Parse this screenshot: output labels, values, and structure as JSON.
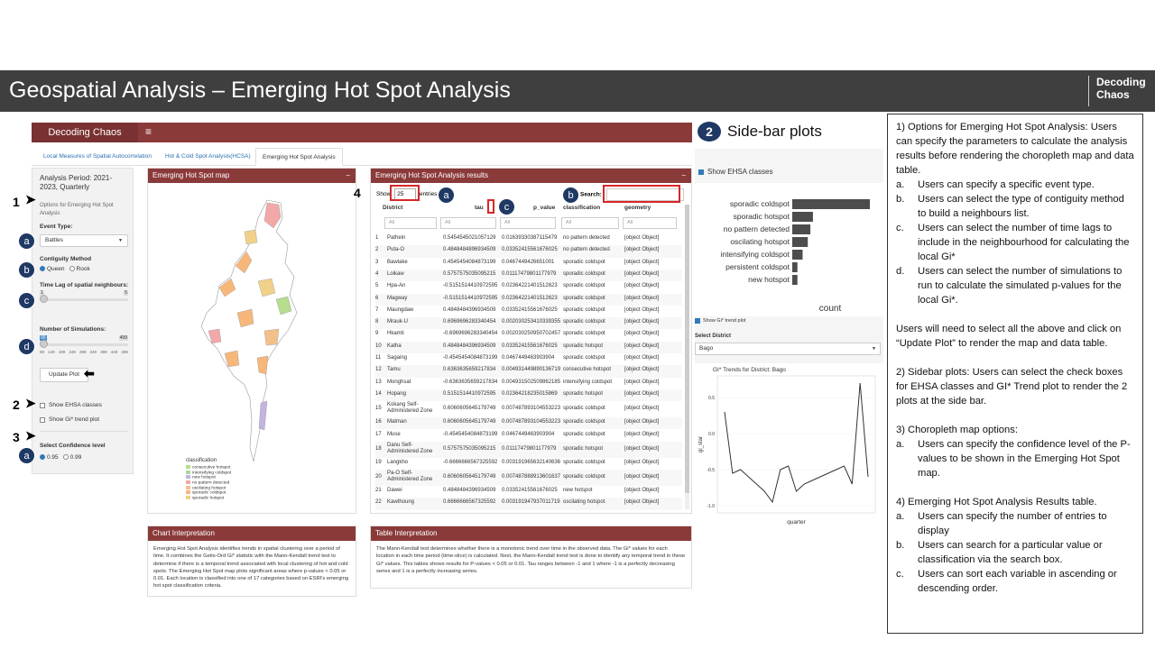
{
  "slide": {
    "title": "Geospatial Analysis – Emerging Hot Spot Analysis",
    "logo_line1": "Decoding",
    "logo_line2": "Chaos"
  },
  "app": {
    "brand": "Decoding Chaos",
    "menu_icon": "≡",
    "tabs": [
      "Local Measures of Spatial Autocorrelation",
      "Hot & Cold Spot Analysis(HCSA)",
      "Emerging Hot Spot Analysis"
    ],
    "sidebar": {
      "period": "Analysis Period: 2021-2023, Quarterly",
      "hint": "Options for Emerging Hot Spot Analysis",
      "event_type_label": "Event Type:",
      "event_type_value": "Battles",
      "contiguity_label": "Contiguity Method",
      "contiguity_options": [
        "Queen",
        "Rook"
      ],
      "time_lag_label": "Time Lag of spatial neighbours:",
      "time_lag_min": "1",
      "time_lag_max": "5",
      "sim_label": "Number of Simulations:",
      "sim_min": "99",
      "sim_max": "499",
      "sim_ticks": [
        "99",
        "149",
        "199",
        "249",
        "299",
        "349",
        "399",
        "449",
        "499"
      ],
      "update_button": "Update Plot",
      "show_ehsa": "Show EHSA classes",
      "show_gi": "Show Gi* trend plot",
      "confidence_label": "Select Confidence level",
      "confidence_options": [
        "0.95",
        "0.99"
      ]
    },
    "map_box": {
      "title": "Emerging Hot Spot map",
      "legend_title": "classification",
      "legend": [
        {
          "label": "consecutive hotspot",
          "color": "#b7dd8e"
        },
        {
          "label": "intensifying coldspot",
          "color": "#a8d8a0"
        },
        {
          "label": "new hotspot",
          "color": "#c3b3e0"
        },
        {
          "label": "no pattern detected",
          "color": "#f2a8a8"
        },
        {
          "label": "oscilating hotspot",
          "color": "#f3c08a"
        },
        {
          "label": "sporadic coldspot",
          "color": "#f7b77a"
        },
        {
          "label": "sporadic hotspot",
          "color": "#f1d08a"
        }
      ]
    },
    "results_box": {
      "title": "Emerging Hot Spot Analysis results",
      "show_label": "Show",
      "entries_value": "25",
      "entries_label": "entries",
      "search_label": "Search:",
      "filter_placeholder": "All",
      "columns": [
        "District",
        "tau",
        "p_value",
        "classification",
        "geometry"
      ],
      "rows": [
        [
          "1",
          "Pathein",
          "0.5454545021057129",
          "0.01639330387115479",
          "no pattern detected",
          "[object Object]"
        ],
        [
          "2",
          "Puta-O",
          "0.4848484896934509",
          "0.03352415561676025",
          "no pattern detected",
          "[object Object]"
        ],
        [
          "3",
          "Bawlake",
          "0.4545454084873199",
          "0.0467449426651001",
          "sporadic coldspot",
          "[object Object]"
        ],
        [
          "4",
          "Loikaw",
          "0.5757575035095215",
          "0.01117479801177979",
          "sporadic coldspot",
          "[object Object]"
        ],
        [
          "5",
          "Hpa-An",
          "-0.5151514410972595",
          "0.02364221401512623",
          "sporadic coldspot",
          "[object Object]"
        ],
        [
          "6",
          "Magway",
          "-0.5151514410972595",
          "0.02364221401512623",
          "sporadic coldspot",
          "[object Object]"
        ],
        [
          "7",
          "Maungdaw",
          "0.4848484396934509",
          "0.03352415561676025",
          "sporadic coldspot",
          "[object Object]"
        ],
        [
          "8",
          "Mrauk-U",
          "0.6969696283340454",
          "0.002030253410339355",
          "sporadic coldspot",
          "[object Object]"
        ],
        [
          "9",
          "Hkamti",
          "-0.6969696283340454",
          "0.002030250950702457",
          "sporadic coldspot",
          "[object Object]"
        ],
        [
          "10",
          "Katha",
          "0.4848484396934509",
          "0.03352415561676025",
          "sporadic hotspot",
          "[object Object]"
        ],
        [
          "11",
          "Sagaing",
          "-0.4545454084873199",
          "0.0467449463903904",
          "sporadic coldspot",
          "[object Object]"
        ],
        [
          "12",
          "Tamu",
          "0.6363635659217834",
          "0.004931449890136719",
          "consecutive hotspot",
          "[object Object]"
        ],
        [
          "13",
          "Monghsat",
          "-0.6363635659217834",
          "0.004931502509862185",
          "intensifying coldspot",
          "[object Object]"
        ],
        [
          "14",
          "Hopang",
          "0.5151514410972595",
          "0.02364218235015869",
          "sporadic hotspot",
          "[object Object]"
        ],
        [
          "15",
          "Kokang Self-Administered Zone",
          "0.6060605645179749",
          "0.007487893104553223",
          "sporadic coldspot",
          "[object Object]"
        ],
        [
          "16",
          "Matman",
          "0.6060605645179749",
          "0.007487893104553223",
          "sporadic coldspot",
          "[object Object]"
        ],
        [
          "17",
          "Muse",
          "-0.4545454084873199",
          "0.0467449463903904",
          "sporadic coldspot",
          "[object Object]"
        ],
        [
          "18",
          "Danu Self-Administered Zone",
          "0.5757575035095215",
          "0.01117479801177979",
          "sporadic hotspot",
          "[object Object]"
        ],
        [
          "19",
          "Langkho",
          "-0.6666666567325592",
          "0.003191965632140636",
          "sporadic coldspot",
          "[object Object]"
        ],
        [
          "20",
          "Pa-O Self-Administered Zone",
          "0.6060605645179749",
          "0.007487888913601637",
          "sporadic coldspot",
          "[object Object]"
        ],
        [
          "21",
          "Dawei",
          "0.4848484396934509",
          "0.03352415561676025",
          "new hotspot",
          "[object Object]"
        ],
        [
          "22",
          "Kawthoung",
          "0.6666666567325592",
          "0.003191947937011719",
          "oscilating hotspot",
          "[object Object]"
        ]
      ]
    },
    "chart_interp": {
      "title": "Chart Interpretation",
      "text": "Emerging Hot Spot Analysis identifies trends in spatial clustering over a period of time. It combines the Getis-Ord Gi* statistic with the Mann-Kendall trend test to determine if there is a temporal trend associated with local clustering of hot and cold spots. The Emerging Hot Spot map plots significant areas where p-values < 0.05 or 0.01. Each location is classified into one of 17 categories based on ESRI's emerging hot spot classification criteria."
    },
    "table_interp": {
      "title": "Table Interpretation",
      "text": "The Mann-Kendall test determines whether there is a monotonic trend over time in the observed data. The Gi* values for each location in each time period (time-slice) is calculated. Next, the Mann-Kendall trend test is done to identify any temporal trend in these Gi* values. This tables shows results for P-values < 0.05 or 0.01. Tau ranges between -1 and 1 where -1 is a perfectly decreasing series and 1 is a perfectly increasing series."
    }
  },
  "sidebar_plots": {
    "badge": "2",
    "title": "Side-bar plots",
    "show_ehsa": "Show EHSA classes",
    "show_gi": "Show Gi* trend plot",
    "select_district_label": "Select District",
    "district_value": "Bago",
    "gi_title": "GI* Trends for District: Bago",
    "gi_ylabel": "gi_star",
    "gi_xlabel": "quarter",
    "gi_yticks": [
      "0.5",
      "0.0",
      "-0.5",
      "-1.0"
    ]
  },
  "chart_data": [
    {
      "type": "bar",
      "orientation": "horizontal",
      "categories": [
        "sporadic coldspot",
        "sporadic hotspot",
        "no pattern detected",
        "oscilating hotspot",
        "intensifying coldspot",
        "persistent coldspot",
        "new hotspot"
      ],
      "values": [
        30,
        8,
        7,
        6,
        4,
        2,
        2
      ],
      "xlabel": "count",
      "ylabel": "",
      "color": "#4d4d4d"
    },
    {
      "type": "line",
      "title": "GI* Trends for District: Bago",
      "xlabel": "quarter",
      "ylabel": "gi_star",
      "y": [
        0.3,
        -0.55,
        -0.5,
        -0.6,
        -0.7,
        -0.8,
        -0.95,
        -0.5,
        -0.45,
        -0.8,
        -0.7,
        -0.65,
        -0.6,
        -0.55,
        -0.5,
        -0.45,
        -0.7,
        0.7,
        -0.6
      ],
      "ylim": [
        -1.1,
        0.8
      ]
    }
  ],
  "callouts": {
    "1": "1",
    "2": "2",
    "3": "3",
    "4": "4",
    "a": "a",
    "b": "b",
    "c": "c",
    "d": "d"
  },
  "notes": {
    "p1": "1) Options for Emerging Hot Spot Analysis: Users can specify the parameters  to calculate the analysis results  before rendering the choropleth  map and data table.",
    "p1_items": [
      [
        "a.",
        "Users can specify a specific event type."
      ],
      [
        "b.",
        "Users can select the type of contiguity method to build a neighbours  list."
      ],
      [
        "c.",
        "Users can select the number of time lags to include in the neighbourhood  for calculating the local Gi*"
      ],
      [
        "d.",
        "Users can select the number of simulations  to run to calculate the simulated  p-values for the local Gi*."
      ]
    ],
    "p2": "Users will need to select all the above and click on “Update Plot” to render the map and data table.",
    "p3": "2) Sidebar plots: Users can select the check boxes for EHSA classes  and GI* Trend plot to render the 2 plots at the side bar.",
    "p4": "3) Choropleth  map options:",
    "p4_items": [
      [
        "a.",
        "Users can specify the confidence level of the P-values to be shown in the Emerging Hot Spot map."
      ]
    ],
    "p5": "4) Emerging Hot Spot Analysis Results table.",
    "p5_items": [
      [
        "a.",
        "Users can specify the number of entries to display"
      ],
      [
        "b.",
        "Users can search for a particular value or classification  via the search box."
      ],
      [
        "c.",
        "Users can sort  each variable in ascending or descending  order."
      ]
    ]
  }
}
